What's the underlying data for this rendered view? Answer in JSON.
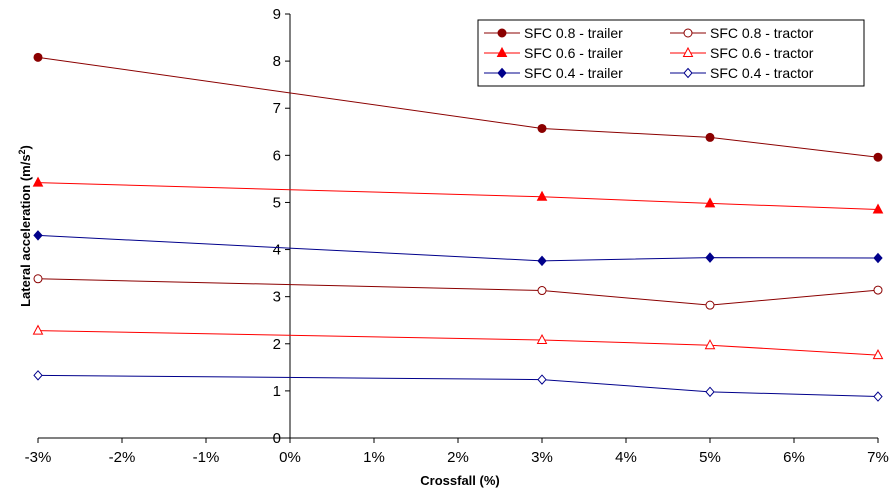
{
  "chart_data": {
    "type": "line",
    "title": "",
    "xlabel": "Crossfall (%)",
    "ylabel_main": "Lateral acceleration (m/s",
    "ylabel_sup": "2",
    "ylabel_end": ")",
    "x_ticks": [
      -3,
      -2,
      -1,
      0,
      1,
      2,
      3,
      4,
      5,
      6,
      7
    ],
    "x_tick_labels": [
      "-3%",
      "-2%",
      "-1%",
      "0%",
      "1%",
      "2%",
      "3%",
      "4%",
      "5%",
      "6%",
      "7%"
    ],
    "xlim": [
      -3,
      7
    ],
    "ylim": [
      0,
      9
    ],
    "y_ticks": [
      0,
      1,
      2,
      3,
      4,
      5,
      6,
      7,
      8,
      9
    ],
    "y_tick_labels": [
      "0",
      "1",
      "2",
      "3",
      "4",
      "5",
      "6",
      "7",
      "8",
      "9"
    ],
    "x": [
      -3,
      3,
      5,
      7
    ],
    "grid": false,
    "legend_position": "top-right",
    "series": [
      {
        "name": "SFC 0.8 - trailer",
        "values": [
          8.08,
          6.57,
          6.38,
          5.96
        ],
        "color": "#8b0000",
        "marker": "circle",
        "filled": true
      },
      {
        "name": "SFC 0.8 - tractor",
        "values": [
          3.38,
          3.13,
          2.82,
          3.14
        ],
        "color": "#8b0000",
        "marker": "circle",
        "filled": false
      },
      {
        "name": "SFC 0.6 - trailer",
        "values": [
          5.42,
          5.12,
          4.98,
          4.85
        ],
        "color": "#ff0000",
        "marker": "triangle",
        "filled": true
      },
      {
        "name": "SFC 0.6 - tractor",
        "values": [
          2.28,
          2.08,
          1.97,
          1.76
        ],
        "color": "#ff0000",
        "marker": "triangle",
        "filled": false
      },
      {
        "name": "SFC 0.4 - trailer",
        "values": [
          4.3,
          3.76,
          3.83,
          3.82
        ],
        "color": "#00008b",
        "marker": "diamond",
        "filled": true
      },
      {
        "name": "SFC 0.4 - tractor",
        "values": [
          1.33,
          1.24,
          0.98,
          0.88
        ],
        "color": "#00008b",
        "marker": "diamond",
        "filled": false
      }
    ]
  }
}
